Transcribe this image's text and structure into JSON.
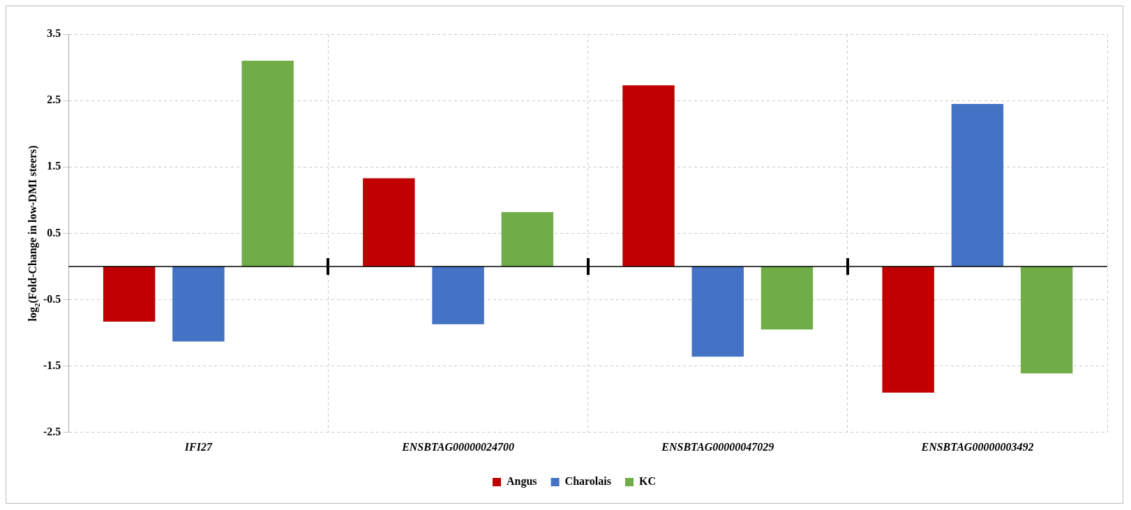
{
  "chart_data": {
    "type": "bar",
    "ylabel": "log$_{2}$(Fold-Change in low-DMI steers)",
    "categories": [
      "IFI27",
      "ENSBTAG00000024700",
      "ENSBTAG00000047029",
      "ENSBTAG00000003492"
    ],
    "series": [
      {
        "name": "Angus",
        "color": "#c00000",
        "values": [
          -0.83,
          1.33,
          2.73,
          -1.9
        ]
      },
      {
        "name": "Charolais",
        "color": "#4472c4",
        "values": [
          -1.13,
          -0.87,
          -1.36,
          2.45
        ]
      },
      {
        "name": "KC",
        "color": "#70ad47",
        "values": [
          3.1,
          0.82,
          -0.95,
          -1.61
        ]
      }
    ],
    "ylim": [
      -2.5,
      3.5
    ],
    "yticks": [
      -2.5,
      -1.5,
      -0.5,
      0.5,
      1.5,
      2.5,
      3.5
    ],
    "grid": true,
    "legend": "bottom"
  }
}
